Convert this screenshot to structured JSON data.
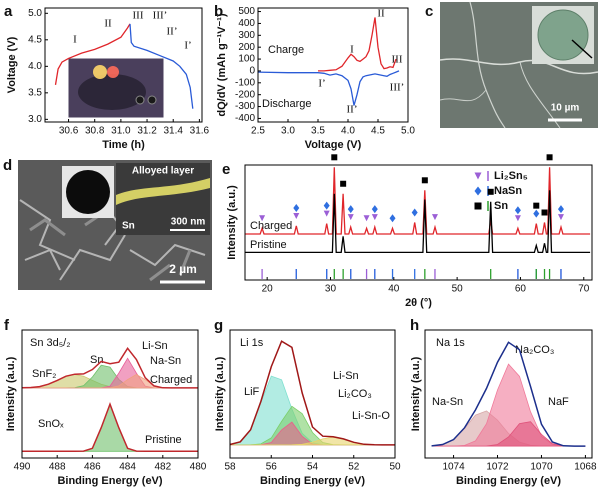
{
  "chart_data": [
    {
      "panel": "a",
      "type": "line",
      "xlabel": "Time (h)",
      "ylabel": "Voltage (V)",
      "x": [
        30.5,
        30.52,
        30.55,
        30.6,
        30.7,
        30.8,
        30.9,
        31.0,
        31.05,
        31.07,
        31.08,
        31.1,
        31.2,
        31.3,
        31.4,
        31.45,
        31.5,
        31.53,
        31.55
      ],
      "series": [
        {
          "color": "#e0262b",
          "values": [
            3.65,
            3.95,
            4.08,
            4.15,
            4.25,
            4.32,
            4.42,
            4.55,
            4.72,
            4.8,
            null,
            null,
            null,
            null,
            null,
            null,
            null,
            null,
            null
          ]
        },
        {
          "color": "#2a5bd7",
          "values": [
            null,
            null,
            null,
            null,
            null,
            null,
            null,
            null,
            null,
            4.8,
            4.45,
            4.38,
            4.3,
            4.2,
            4.1,
            4.0,
            3.85,
            3.6,
            3.2
          ]
        }
      ],
      "xlim": [
        30.42,
        31.62
      ],
      "xticks": [
        30.6,
        30.8,
        {
          "value": 31,
          "label": "31.0"
        },
        31.2,
        31.4,
        31.6
      ],
      "ylim": [
        2.95,
        5.1
      ],
      "yticks": [
        {
          "value": 3,
          "label": "3.0"
        },
        3.5,
        {
          "value": 4,
          "label": "4.0"
        },
        4.5,
        {
          "value": 5,
          "label": "5.0"
        }
      ],
      "annotations": [
        "I",
        "II",
        "III",
        "III’",
        "II’",
        "I’"
      ]
    },
    {
      "panel": "b",
      "type": "line",
      "xlabel": "Voltage (V)",
      "ylabel": "dQ/dV (mAh g⁻¹V⁻¹)",
      "x": [
        2.5,
        3.0,
        3.5,
        3.6,
        3.7,
        3.8,
        3.9,
        4.0,
        4.05,
        4.1,
        4.15,
        4.2,
        4.25,
        4.3,
        4.35,
        4.4,
        4.45,
        4.5,
        4.55,
        4.6,
        4.65,
        4.7,
        4.75,
        4.8,
        4.85
      ],
      "series": [
        {
          "name": "Charge",
          "color": "#e0262b",
          "values": [
            null,
            null,
            0,
            0,
            5,
            10,
            40,
            110,
            140,
            120,
            90,
            80,
            100,
            120,
            170,
            300,
            450,
            200,
            60,
            20,
            25,
            35,
            30,
            100,
            null
          ]
        },
        {
          "name": "Discharge",
          "color": "#2a5bd7",
          "values": [
            -10,
            -15,
            -15,
            -20,
            -35,
            -25,
            -40,
            -80,
            -150,
            -290,
            -200,
            -90,
            -50,
            -40,
            -35,
            -30,
            -25,
            -30,
            -35,
            -40,
            -45,
            -30,
            -20,
            -10,
            0
          ]
        }
      ],
      "xlim": [
        2.5,
        5.0
      ],
      "xticks": [
        2.5,
        {
          "value": 3,
          "label": "3.0"
        },
        3.5,
        {
          "value": 4,
          "label": "4.0"
        },
        4.5,
        {
          "value": 5,
          "label": "5.0"
        }
      ],
      "ylim": [
        -430,
        530
      ],
      "yticks": [
        -400,
        -300,
        -200,
        -100,
        0,
        100,
        200,
        300,
        400,
        500
      ],
      "annotations": [
        "I",
        "II",
        "III",
        "I’",
        "II’",
        "III’"
      ]
    },
    {
      "panel": "e",
      "type": "line",
      "xlabel": "2θ (°)",
      "ylabel": "Intensity (a.u.)",
      "x": [
        16.5,
        18.9,
        19.2,
        19.5,
        24.3,
        24.6,
        24.9,
        29.1,
        29.4,
        29.7,
        30.3,
        30.6,
        30.9,
        31.7,
        32.0,
        32.3,
        32.9,
        33.2,
        33.5,
        35.4,
        35.7,
        36.0,
        36.7,
        37.0,
        37.3,
        39.5,
        39.8,
        40.1,
        43.0,
        43.3,
        43.6,
        44.6,
        44.9,
        45.2,
        46.2,
        46.5,
        46.8,
        55.0,
        55.3,
        55.6,
        59.3,
        59.6,
        59.9,
        62.2,
        62.5,
        62.8,
        63.5,
        63.8,
        64.1,
        64.3,
        64.6,
        64.9,
        66.1,
        66.4,
        66.7,
        71.0
      ],
      "series": [
        {
          "name": "Charged",
          "color": "#e0262b",
          "values": [
            4,
            4,
            4.5,
            4,
            4,
            4.7,
            4,
            4,
            4.9,
            4,
            4,
            9.8,
            4,
            4,
            7.5,
            4,
            4,
            4.6,
            4,
            4,
            4.5,
            4,
            4,
            4.6,
            4,
            4,
            4.5,
            4,
            4,
            5.0,
            4,
            4,
            7.8,
            4,
            4,
            4.6,
            4,
            4,
            5.2,
            4,
            4,
            4.5,
            4,
            4,
            4.9,
            4,
            4,
            5.0,
            4,
            4,
            9.8,
            4,
            4,
            4.6,
            4,
            4
          ]
        },
        {
          "name": "Pristine",
          "color": "#000000",
          "values": [
            2.4,
            2.4,
            2.4,
            2.4,
            2.4,
            2.4,
            2.4,
            2.4,
            2.4,
            2.4,
            2.4,
            7.5,
            2.4,
            2.4,
            3.8,
            2.4,
            2.4,
            2.4,
            2.4,
            2.4,
            2.4,
            2.4,
            2.4,
            2.4,
            2.4,
            2.4,
            2.4,
            2.4,
            2.4,
            2.4,
            2.4,
            2.4,
            7.0,
            2.4,
            2.4,
            2.4,
            2.4,
            2.4,
            6.8,
            2.4,
            2.4,
            2.4,
            2.4,
            2.4,
            3.0,
            2.4,
            2.4,
            3.2,
            2.4,
            2.4,
            7.8,
            2.4,
            2.4,
            2.4,
            2.4,
            2.4
          ]
        }
      ],
      "xlim": [
        16.5,
        71.3
      ],
      "xticks": [
        20,
        30,
        40,
        50,
        60,
        70
      ],
      "ylim": [
        0,
        10
      ],
      "phases": [
        {
          "name": "Li₂Sn₅",
          "color": "#9b5fd6",
          "stick_color": "#9b5fd6",
          "symbol": "triangle",
          "peaks": [
            19.2,
            24.6,
            29.4,
            33.2,
            35.7,
            37.0,
            46.5,
            59.6,
            66.4
          ]
        },
        {
          "name": "NaSn",
          "color": "#2f6fe0",
          "stick_color": "#2f6fe0",
          "symbol": "diamond",
          "peaks": [
            24.6,
            29.4,
            33.2,
            37.0,
            39.8,
            43.3,
            59.6,
            62.5,
            66.4
          ]
        },
        {
          "name": "Sn",
          "color": "#000000",
          "stick_color": "#2ca02c",
          "symbol": "square",
          "peaks": [
            30.6,
            32.0,
            44.9,
            55.3,
            62.5,
            63.8,
            64.6
          ]
        }
      ]
    },
    {
      "panel": "f",
      "type": "area",
      "title": "Sn 3d₅/₂",
      "xlabel": "Binding Energy (eV)",
      "ylabel": "Intensity (a.u.)",
      "x": [
        490,
        489.5,
        489,
        488.5,
        488,
        487.5,
        487,
        486.5,
        486,
        485.5,
        485,
        484.5,
        484,
        483.5,
        483,
        482.5,
        482,
        481.5,
        481,
        480.5,
        480
      ],
      "series": [
        {
          "name": "SnF₂",
          "color": "#c9c86a",
          "fill": true,
          "values": [
            5.21,
            5.23,
            5.3,
            5.48,
            5.76,
            6.07,
            6.2,
            6.07,
            5.76,
            5.48,
            5.3,
            5.23,
            5.21,
            5.2,
            5.2,
            5.2,
            5.2,
            5.2,
            5.2,
            5.2,
            5.2
          ]
        },
        {
          "name": "Sn",
          "color": "#6fc06a",
          "fill": true,
          "values": [
            5.2,
            5.2,
            5.2,
            5.2,
            5.2,
            5.2,
            5.22,
            5.37,
            6.01,
            6.89,
            6.75,
            5.83,
            5.31,
            5.21,
            5.2,
            5.2,
            5.2,
            5.2,
            5.2,
            5.2,
            5.2
          ]
        },
        {
          "name": "Li-Sn",
          "color": "#e7609a",
          "fill": true,
          "values": [
            5.2,
            5.2,
            5.2,
            5.2,
            5.2,
            5.2,
            5.2,
            5.2,
            5.2,
            5.2,
            5.34,
            6.3,
            7.4,
            6.3,
            5.34,
            5.2,
            5.2,
            5.2,
            5.2,
            5.2,
            5.2
          ]
        },
        {
          "name": "Na-Sn",
          "color": "#f0a080",
          "fill": true,
          "values": [
            5.2,
            5.2,
            5.2,
            5.2,
            5.2,
            5.2,
            5.2,
            5.2,
            5.2,
            5.2,
            5.21,
            5.35,
            5.82,
            6.2,
            5.82,
            5.35,
            5.21,
            5.2,
            5.2,
            5.2,
            5.2
          ]
        },
        {
          "name": "Charged",
          "color": "#c0282d",
          "fill": false,
          "values": [
            5.21,
            5.23,
            5.3,
            5.48,
            5.76,
            6.07,
            6.22,
            6.24,
            6.57,
            7.17,
            7.0,
            7.11,
            8.14,
            7.31,
            5.96,
            5.35,
            5.21,
            5.2,
            5.2,
            5.2,
            5.2
          ]
        },
        {
          "name": "SnOₓ",
          "color": "#6fc06a",
          "fill": true,
          "values": [
            0.5,
            0.5,
            0.5,
            0.5,
            0.5,
            0.5,
            0.5,
            0.51,
            0.72,
            2.25,
            4.0,
            2.25,
            0.72,
            0.51,
            0.5,
            0.5,
            0.5,
            0.5,
            0.5,
            0.5,
            0.5
          ]
        },
        {
          "name": "Pristine",
          "color": "#c0282d",
          "fill": false,
          "values": [
            0.5,
            0.5,
            0.5,
            0.5,
            0.5,
            0.5,
            0.5,
            0.51,
            0.72,
            2.25,
            4.0,
            2.25,
            0.72,
            0.51,
            0.5,
            0.5,
            0.5,
            0.5,
            0.5,
            0.5,
            0.5
          ]
        }
      ],
      "xlim": [
        490,
        480
      ],
      "xticks": [
        490,
        488,
        486,
        484,
        482,
        480
      ],
      "ylim": [
        0,
        9.5
      ]
    },
    {
      "panel": "g",
      "type": "area",
      "title": "Li 1s",
      "xlabel": "Binding Energy (eV)",
      "ylabel": "Intensity (a.u.)",
      "x": [
        58,
        57.5,
        57,
        56.5,
        56,
        55.5,
        55,
        54.5,
        54,
        53.5,
        53,
        52.5,
        52,
        51.5,
        51,
        50.5,
        50
      ],
      "series": [
        {
          "name": "LiF",
          "color": "#7fe0d0",
          "fill": true,
          "values": [
            1.03,
            1.24,
            2.15,
            4.24,
            6.27,
            5.99,
            3.75,
            1.88,
            1.16,
            1.02,
            1,
            1,
            1,
            1,
            1,
            1,
            1
          ]
        },
        {
          "name": "Li-Sn",
          "color": "#7ccf6a",
          "fill": true,
          "values": [
            1,
            1,
            1.01,
            1.08,
            1.54,
            2.8,
            3.96,
            3.39,
            1.95,
            1.19,
            1.02,
            1,
            1,
            1,
            1,
            1,
            1
          ]
        },
        {
          "name": "Li₂CO₃",
          "color": "#ea5f8a",
          "fill": true,
          "values": [
            1,
            1,
            1,
            1.01,
            1.19,
            2.15,
            2.75,
            1.66,
            1.06,
            1,
            1,
            1,
            1,
            1,
            1,
            1,
            1
          ]
        },
        {
          "name": "Li-Sn-O",
          "color": "#e8d36a",
          "fill": true,
          "values": [
            1,
            1,
            1,
            1,
            1,
            1,
            1.01,
            1.05,
            1.2,
            1.46,
            1.6,
            1.46,
            1.2,
            1.05,
            1.01,
            1,
            1
          ]
        },
        {
          "color": "#a01818",
          "fill": false,
          "values": [
            1.03,
            1.24,
            2.16,
            4.33,
            7.0,
            8.94,
            8.47,
            4.98,
            2.37,
            1.67,
            1.62,
            1.46,
            1.2,
            1.05,
            1.01,
            1,
            1
          ]
        }
      ],
      "xlim": [
        58,
        50
      ],
      "xticks": [
        58,
        56,
        54,
        52,
        50
      ],
      "ylim": [
        0,
        9.8
      ]
    },
    {
      "panel": "h",
      "type": "area",
      "title": "Na 1s",
      "xlabel": "Binding Energy (eV)",
      "ylabel": "Intensity (a.u.)",
      "x": [
        1075,
        1074.5,
        1074,
        1073.5,
        1073,
        1072.5,
        1072,
        1071.5,
        1071,
        1070.5,
        1070,
        1069.5,
        1069,
        1068.5,
        1068
      ],
      "series": [
        {
          "name": "Na-Sn",
          "color": "#d7a7a7",
          "fill": true,
          "values": [
            1.02,
            1.14,
            1.56,
            2.5,
            3.62,
            3.97,
            3.2,
            2.07,
            1.34,
            1.07,
            1.01,
            1,
            1,
            1,
            1
          ]
        },
        {
          "name": "Na₂CO₃",
          "color": "#f07a9a",
          "fill": true,
          "values": [
            1,
            1,
            1,
            1.06,
            1.44,
            2.89,
            5.74,
            7.92,
            6.89,
            3.91,
            1.84,
            1.14,
            1.01,
            1,
            1
          ]
        },
        {
          "name": "NaF",
          "color": "#e0527a",
          "fill": true,
          "values": [
            1,
            1,
            1,
            1,
            1,
            1.01,
            1.14,
            1.77,
            2.9,
            3.06,
            1.99,
            1.21,
            1.02,
            1,
            1
          ]
        },
        {
          "color": "#1c2f8c",
          "fill": false,
          "values": [
            1.02,
            1.14,
            1.56,
            2.56,
            4.06,
            5.87,
            8.08,
            9.76,
            9.13,
            6.04,
            2.84,
            1.35,
            1.03,
            1,
            1
          ]
        }
      ],
      "xlim": [
        1075.3,
        1067.7
      ],
      "xticks": [
        1074,
        1072,
        1070,
        1068
      ],
      "ylim": [
        0,
        10.8
      ]
    }
  ],
  "micrographs": [
    {
      "panel": "c",
      "scale_bar": "10 µm"
    },
    {
      "panel": "d",
      "labels": [
        "Alloyed layer",
        "Sn",
        "300 nm"
      ],
      "scale_bar": "2 µm"
    }
  ]
}
